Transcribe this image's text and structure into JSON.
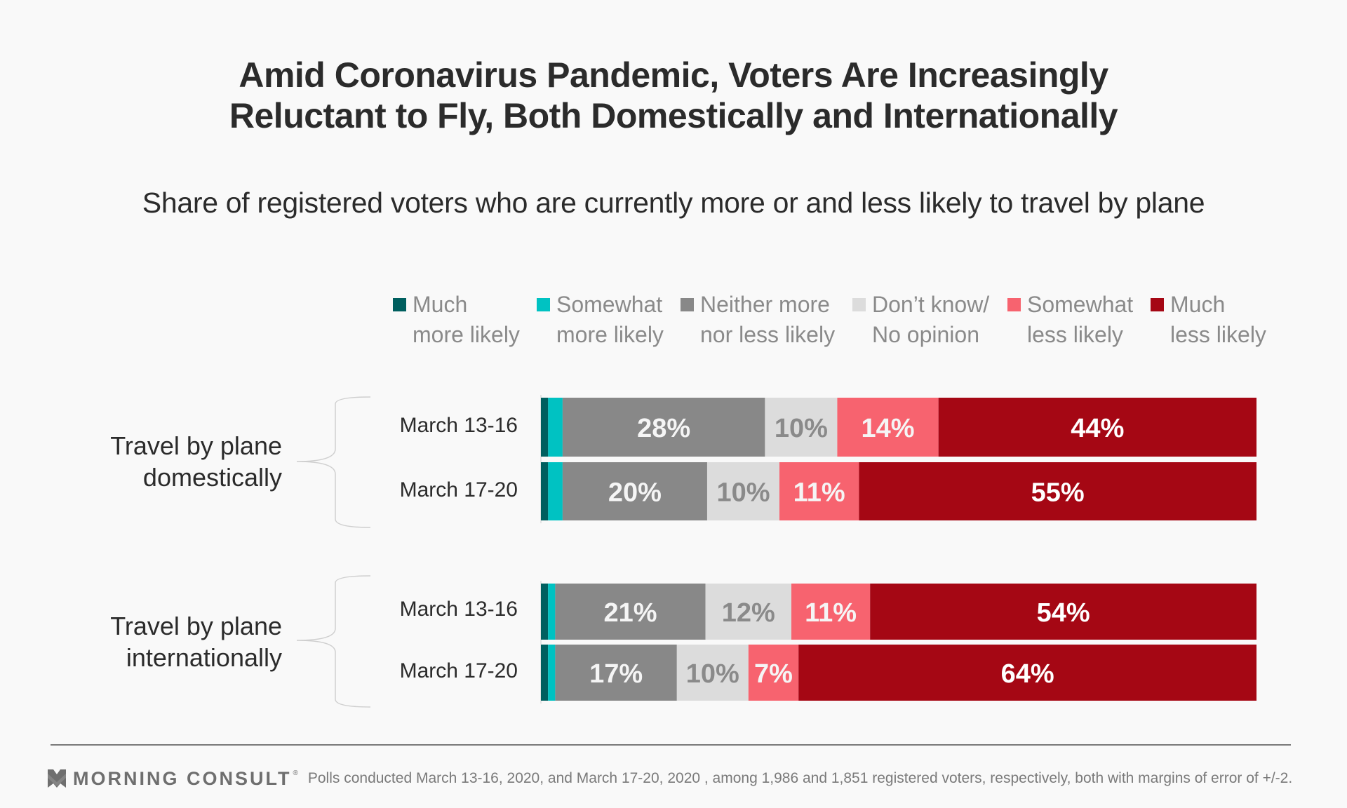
{
  "header": {
    "title_line1": "Amid Coronavirus Pandemic, Voters Are Increasingly",
    "title_line2": "Reluctant to Fly, Both Domestically and Internationally",
    "subtitle": "Share of registered voters who are currently more or and less likely to travel by plane"
  },
  "footer": {
    "brand": "MORNING CONSULT",
    "registered_mark": "®",
    "note": "Polls conducted March 13-16, 2020, and March 17-20, 2020 , among 1,986 and 1,851 registered voters, respectively, both with margins of error of +/-2."
  },
  "chart_data": {
    "type": "bar",
    "orientation": "horizontal",
    "stacked": true,
    "title": "Amid Coronavirus Pandemic, Voters Are Increasingly Reluctant to Fly, Both Domestically and Internationally",
    "subtitle": "Share of registered voters who are currently more or and less likely to travel by plane",
    "xlabel": "",
    "ylabel": "",
    "xlim": [
      0,
      100
    ],
    "grid": false,
    "legend_position": "top",
    "legend": [
      {
        "line1": "Much",
        "line2": "more likely",
        "color": "#005f5f"
      },
      {
        "line1": "Somewhat",
        "line2": "more likely",
        "color": "#00c2c2"
      },
      {
        "line1": "Neither more",
        "line2": "nor less likely",
        "color": "#888888"
      },
      {
        "line1": "Don’t know/",
        "line2": "No opinion",
        "color": "#dcdcdc"
      },
      {
        "line1": "Somewhat",
        "line2": "less likely",
        "color": "#f7636f"
      },
      {
        "line1": "Much",
        "line2": "less likely",
        "color": "#a50714"
      }
    ],
    "groups": [
      {
        "label_line1": "Travel by plane",
        "label_line2": "domestically",
        "rows": [
          {
            "label": "March 13-16",
            "values": [
              1,
              2,
              28,
              10,
              14,
              44
            ],
            "labels": [
              "",
              "",
              "28%",
              "10%",
              "14%",
              "44%"
            ]
          },
          {
            "label": "March 17-20",
            "values": [
              1,
              2,
              20,
              10,
              11,
              55
            ],
            "labels": [
              "",
              "",
              "20%",
              "10%",
              "11%",
              "55%"
            ]
          }
        ]
      },
      {
        "label_line1": "Travel by plane",
        "label_line2": "internationally",
        "rows": [
          {
            "label": "March 13-16",
            "values": [
              1,
              1,
              21,
              12,
              11,
              54
            ],
            "labels": [
              "",
              "",
              "21%",
              "12%",
              "11%",
              "54%"
            ]
          },
          {
            "label": "March 17-20",
            "values": [
              1,
              1,
              17,
              10,
              7,
              64
            ],
            "labels": [
              "",
              "",
              "17%",
              "10%",
              "7%",
              "64%"
            ]
          }
        ]
      }
    ],
    "series_label_colors": [
      "#ffffff",
      "#ffffff",
      "#f5f5f5",
      "#8a8a8a",
      "#f5f5f5",
      "#ffffff"
    ]
  }
}
